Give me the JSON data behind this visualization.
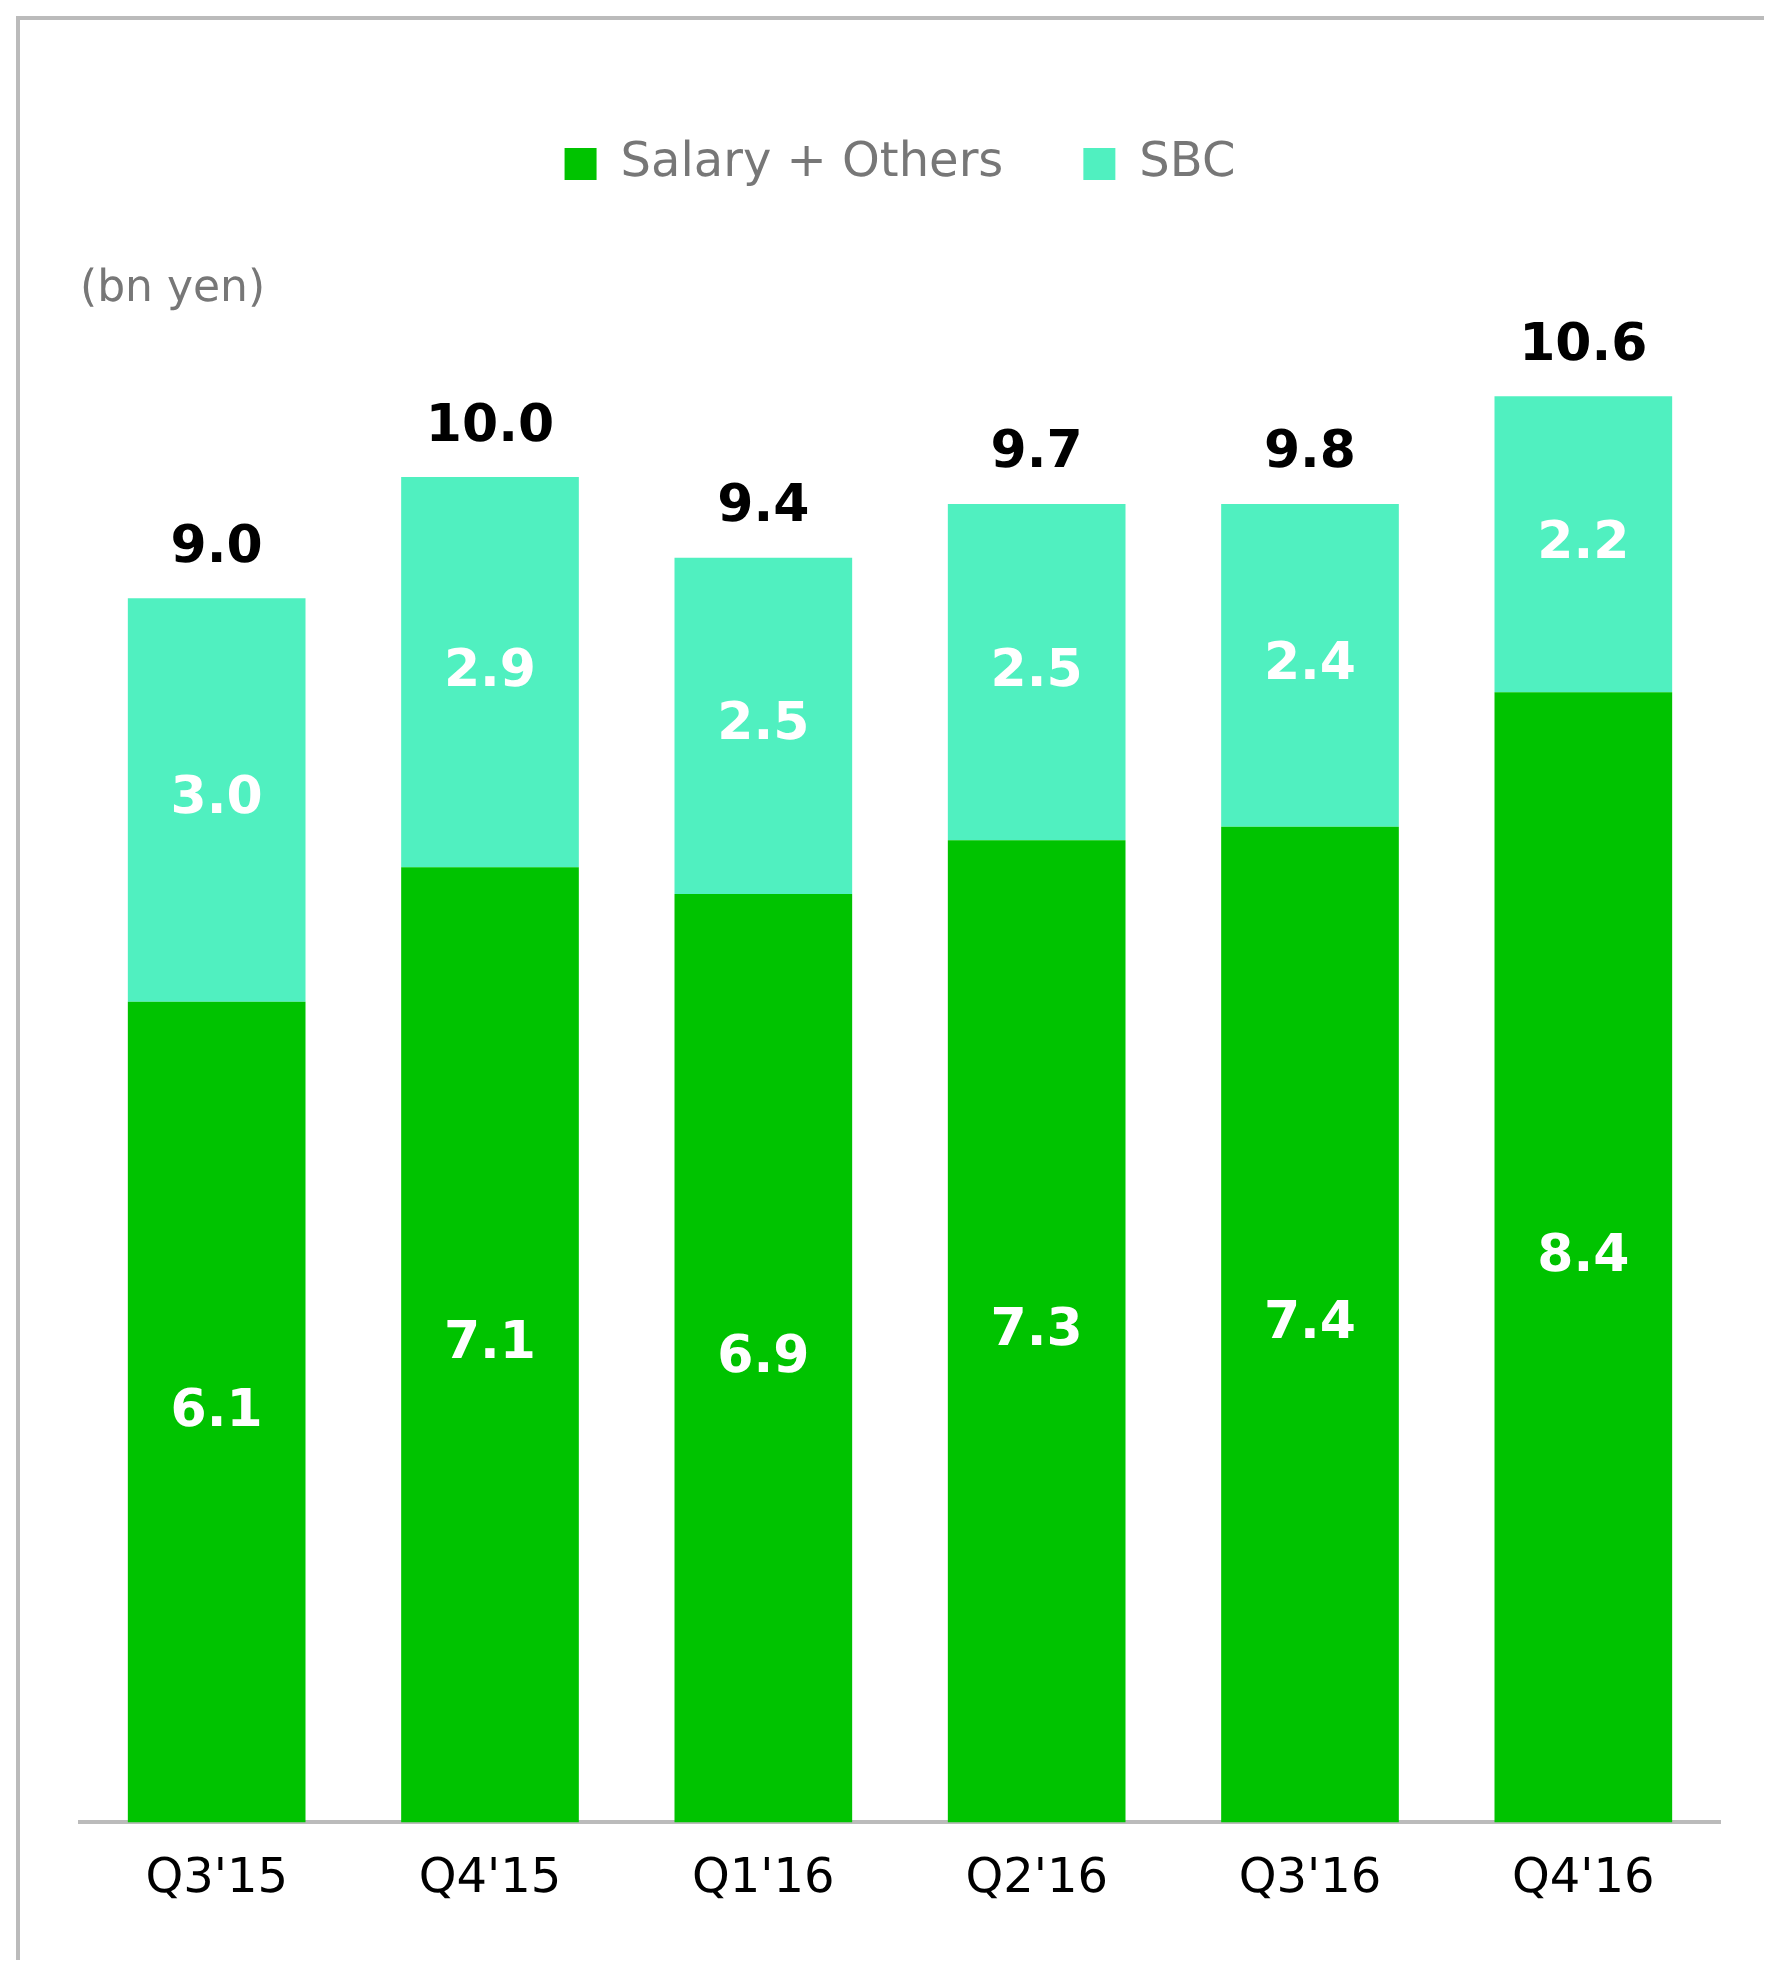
{
  "chart_data": {
    "type": "bar",
    "stacked": true,
    "ylabel": "(bn yen)",
    "legend": "top",
    "categories": [
      "Q3'15",
      "Q4'15",
      "Q1'16",
      "Q2'16",
      "Q3'16",
      "Q4'16"
    ],
    "series": [
      {
        "name": "Salary + Others",
        "color": "#00c300",
        "values": [
          6.1,
          7.1,
          6.9,
          7.3,
          7.4,
          8.4
        ],
        "value_labels": [
          "6.1",
          "7.1",
          "6.9",
          "7.3",
          "7.4",
          "8.4"
        ]
      },
      {
        "name": "SBC",
        "color": "#50f0c0",
        "values": [
          3.0,
          2.9,
          2.5,
          2.5,
          2.4,
          2.2
        ],
        "value_labels": [
          "3.0",
          "2.9",
          "2.5",
          "2.5",
          "2.4",
          "2.2"
        ]
      }
    ],
    "totals": [
      "9.0",
      "10.0",
      "9.4",
      "9.7",
      "9.8",
      "10.6"
    ],
    "grid": false
  }
}
